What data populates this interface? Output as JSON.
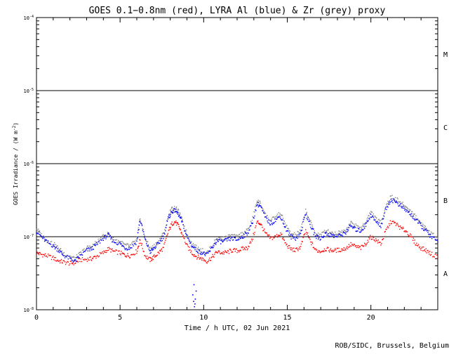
{
  "chart_data": {
    "type": "scatter",
    "title": "GOES 0.1−0.8nm (red), LYRA Al (blue) & Zr (grey) proxy",
    "xlabel": "Time / h UTC, 02 Jun 2021",
    "ylabel_main": "GOES Irradiance / (W m",
    "ylabel_exp": "-2",
    "ylabel_close": ")",
    "xlim": [
      0,
      24
    ],
    "ylim_log10": [
      -8,
      -4
    ],
    "y_scale": "log",
    "x_ticks": [
      0,
      5,
      10,
      15,
      20
    ],
    "y_ticks": [
      {
        "exp": -8,
        "label": "10",
        "sup": "-8"
      },
      {
        "exp": -7,
        "label": "10",
        "sup": "-7"
      },
      {
        "exp": -6,
        "label": "10",
        "sup": "-6"
      },
      {
        "exp": -5,
        "label": "10",
        "sup": "-5"
      },
      {
        "exp": -4,
        "label": "10",
        "sup": "-4"
      }
    ],
    "flare_classes": [
      {
        "label": "A",
        "exp": -7.5
      },
      {
        "label": "B",
        "exp": -6.5
      },
      {
        "label": "C",
        "exp": -5.5
      },
      {
        "label": "M",
        "exp": -4.5
      }
    ],
    "threshold_lines_exp": [
      -7,
      -6,
      -5
    ],
    "series": [
      {
        "color": "#ff0000",
        "x": [
          0,
          0.3,
          0.6,
          1.0,
          1.3,
          1.6,
          2.0,
          2.3,
          2.6,
          3.0,
          3.3,
          3.6,
          4.0,
          4.3,
          4.6,
          5.0,
          5.3,
          5.6,
          6.0,
          6.2,
          6.5,
          6.8,
          7.0,
          7.3,
          7.6,
          7.9,
          8.1,
          8.3,
          8.5,
          8.7,
          9.0,
          9.3,
          9.6,
          9.9,
          10.2,
          10.5,
          10.8,
          11.1,
          11.4,
          11.7,
          12.0,
          12.3,
          12.6,
          12.9,
          13.2,
          13.4,
          13.7,
          14.0,
          14.3,
          14.6,
          14.9,
          15.2,
          15.5,
          15.8,
          16.1,
          16.4,
          16.7,
          17.0,
          17.3,
          17.6,
          17.9,
          18.2,
          18.5,
          18.8,
          19.1,
          19.4,
          19.7,
          20.0,
          20.3,
          20.6,
          20.9,
          21.2,
          21.5,
          21.8,
          22.1,
          22.4,
          22.7,
          23.0,
          23.3,
          23.6,
          24.0
        ],
        "y": [
          6e-08,
          5.7e-08,
          5.5e-08,
          5.1e-08,
          4.7e-08,
          4.5e-08,
          4.3e-08,
          4.4e-08,
          4.8e-08,
          4.9e-08,
          5e-08,
          5.4e-08,
          6e-08,
          6.8e-08,
          6.3e-08,
          6e-08,
          5.6e-08,
          5.5e-08,
          6.3e-08,
          9e-08,
          5.5e-08,
          4.8e-08,
          5.2e-08,
          6e-08,
          7e-08,
          1.2e-07,
          1.5e-07,
          1.6e-07,
          1.4e-07,
          1.1e-07,
          7.5e-08,
          6e-08,
          5.3e-08,
          5e-08,
          4.6e-08,
          5.2e-08,
          6.2e-08,
          6e-08,
          6.1e-08,
          6.5e-08,
          6.4e-08,
          6.8e-08,
          7e-08,
          9e-08,
          1.6e-07,
          1.5e-07,
          1.1e-07,
          9.5e-08,
          1e-07,
          1.1e-07,
          8e-08,
          6.8e-08,
          6.5e-08,
          7.2e-08,
          1.2e-07,
          8.5e-08,
          6.5e-08,
          6.3e-08,
          6.8e-08,
          6.5e-08,
          6.5e-08,
          6.6e-08,
          6.9e-08,
          7.8e-08,
          7.3e-08,
          7e-08,
          8e-08,
          1e-07,
          9e-08,
          8e-08,
          1.2e-07,
          1.6e-07,
          1.5e-07,
          1.3e-07,
          1.2e-07,
          1e-07,
          8e-08,
          7e-08,
          6.5e-08,
          5.8e-08,
          5.2e-08
        ]
      },
      {
        "color": "#0000ff",
        "x": [
          0,
          0.3,
          0.6,
          1.0,
          1.3,
          1.6,
          2.0,
          2.3,
          2.6,
          3.0,
          3.3,
          3.6,
          4.0,
          4.3,
          4.6,
          5.0,
          5.3,
          5.6,
          6.0,
          6.2,
          6.5,
          6.8,
          7.0,
          7.3,
          7.6,
          7.9,
          8.1,
          8.3,
          8.5,
          8.7,
          9.0,
          9.3,
          9.6,
          9.9,
          10.2,
          10.5,
          10.8,
          11.1,
          11.4,
          11.7,
          12.0,
          12.3,
          12.6,
          12.9,
          13.2,
          13.4,
          13.7,
          14.0,
          14.3,
          14.6,
          14.9,
          15.2,
          15.5,
          15.8,
          16.1,
          16.4,
          16.7,
          17.0,
          17.3,
          17.6,
          17.9,
          18.2,
          18.5,
          18.8,
          19.1,
          19.4,
          19.7,
          20.0,
          20.3,
          20.6,
          20.9,
          21.2,
          21.5,
          21.8,
          22.1,
          22.4,
          22.7,
          23.0,
          23.3,
          23.6,
          24.0
        ],
        "y": [
          1.2e-07,
          1e-07,
          8.5e-08,
          7.5e-08,
          6.6e-08,
          5.6e-08,
          5e-08,
          4.6e-08,
          5.4e-08,
          6.5e-08,
          6.8e-08,
          7.8e-08,
          9.5e-08,
          1.05e-07,
          8.6e-08,
          8e-08,
          7e-08,
          7e-08,
          8.5e-08,
          1.7e-07,
          9e-08,
          6.2e-08,
          6.8e-08,
          8e-08,
          1e-07,
          1.8e-07,
          2.2e-07,
          2.3e-07,
          2e-07,
          1.6e-07,
          1e-07,
          7.5e-08,
          6.5e-08,
          6e-08,
          5.6e-08,
          7e-08,
          8.8e-08,
          8.5e-08,
          9e-08,
          9.5e-08,
          9e-08,
          1e-07,
          1.1e-07,
          1.5e-07,
          2.8e-07,
          2.6e-07,
          1.8e-07,
          1.5e-07,
          1.7e-07,
          1.9e-07,
          1.3e-07,
          1e-07,
          9.5e-08,
          1.1e-07,
          2.1e-07,
          1.4e-07,
          1e-07,
          9.5e-08,
          1.1e-07,
          1.05e-07,
          1e-07,
          1.05e-07,
          1.15e-07,
          1.4e-07,
          1.25e-07,
          1.2e-07,
          1.45e-07,
          2e-07,
          1.6e-07,
          1.4e-07,
          2.4e-07,
          3.2e-07,
          3e-07,
          2.6e-07,
          2.3e-07,
          2e-07,
          1.7e-07,
          1.4e-07,
          1.2e-07,
          1e-07,
          8.5e-08
        ]
      },
      {
        "color": "#888888",
        "x": [
          0,
          0.3,
          0.6,
          1.0,
          1.3,
          1.6,
          2.0,
          2.3,
          2.6,
          3.0,
          3.3,
          3.6,
          4.0,
          4.3,
          4.6,
          5.0,
          5.3,
          5.6,
          6.0,
          6.2,
          6.5,
          6.8,
          7.0,
          7.3,
          7.6,
          7.9,
          8.1,
          8.3,
          8.5,
          8.7,
          9.0,
          9.3,
          9.6,
          9.9,
          10.2,
          10.5,
          10.8,
          11.1,
          11.4,
          11.7,
          12.0,
          12.3,
          12.6,
          12.9,
          13.2,
          13.4,
          13.7,
          14.0,
          14.3,
          14.6,
          14.9,
          15.2,
          15.5,
          15.8,
          16.1,
          16.4,
          16.7,
          17.0,
          17.3,
          17.6,
          17.9,
          18.2,
          18.5,
          18.8,
          19.1,
          19.4,
          19.7,
          20.0,
          20.3,
          20.6,
          20.9,
          21.2,
          21.5,
          21.8,
          22.1,
          22.4,
          22.7,
          23.0,
          23.3,
          23.6,
          24.0
        ],
        "y": [
          1.3e-07,
          1.05e-07,
          9e-08,
          8e-08,
          7e-08,
          6e-08,
          5.4e-08,
          5e-08,
          5.8e-08,
          7e-08,
          7.3e-08,
          8.4e-08,
          1e-07,
          1.1e-07,
          9.2e-08,
          8.6e-08,
          7.6e-08,
          7.5e-08,
          9e-08,
          1.8e-07,
          9.6e-08,
          6.7e-08,
          7.3e-08,
          8.6e-08,
          1.1e-07,
          1.95e-07,
          2.4e-07,
          2.5e-07,
          2.2e-07,
          1.7e-07,
          1.1e-07,
          8e-08,
          7e-08,
          6.5e-08,
          6e-08,
          7.5e-08,
          9.5e-08,
          9.2e-08,
          9.8e-08,
          1.03e-07,
          9.8e-08,
          1.1e-07,
          1.2e-07,
          1.65e-07,
          3.1e-07,
          2.85e-07,
          2e-07,
          1.65e-07,
          1.85e-07,
          2.1e-07,
          1.45e-07,
          1.1e-07,
          1.05e-07,
          1.2e-07,
          2.3e-07,
          1.55e-07,
          1.1e-07,
          1.05e-07,
          1.2e-07,
          1.15e-07,
          1.1e-07,
          1.15e-07,
          1.25e-07,
          1.55e-07,
          1.4e-07,
          1.3e-07,
          1.6e-07,
          2.2e-07,
          1.75e-07,
          1.55e-07,
          2.65e-07,
          3.5e-07,
          3.3e-07,
          2.9e-07,
          2.55e-07,
          2.2e-07,
          1.85e-07,
          1.55e-07,
          1.3e-07,
          1.1e-07,
          9.5e-08
        ]
      }
    ],
    "outliers": {
      "color": "#0000ff",
      "x": [
        9.35,
        9.4,
        9.45,
        9.5,
        9.55,
        9.42,
        9.48
      ],
      "y": [
        1.6e-08,
        1.3e-08,
        1.1e-08,
        1.4e-08,
        1.8e-08,
        2.2e-08,
        1.2e-08
      ]
    },
    "credit": "ROB/SIDC, Brussels, Belgium"
  }
}
